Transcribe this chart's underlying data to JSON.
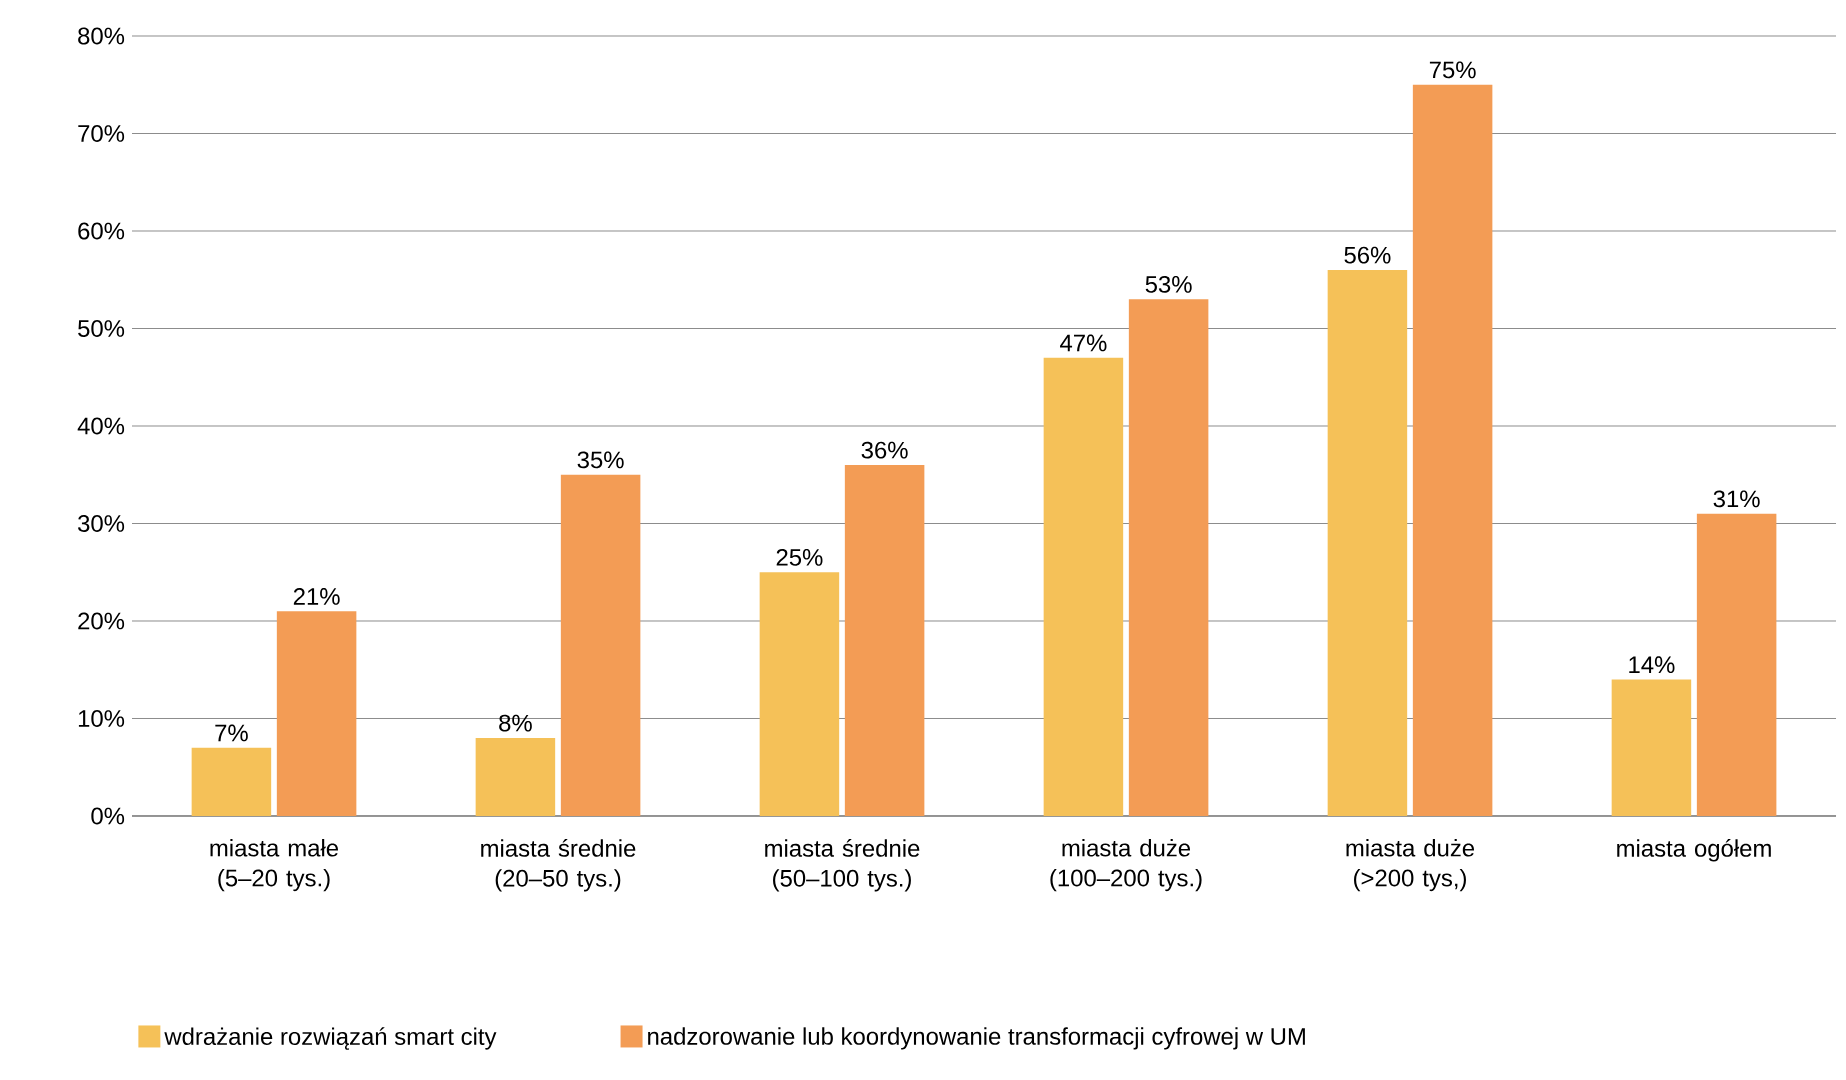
{
  "chart_data": {
    "type": "bar",
    "categories": [
      "miasta małe (5–20 tys.)",
      "miasta średnie (20–50 tys.)",
      "miasta średnie (50–100 tys.)",
      "miasta duże (100–200 tys.)",
      "miasta duże (>200 tys,)",
      "miasta ogółem"
    ],
    "series": [
      {
        "name": "wdrażanie rozwiązań smart city",
        "color": "#f5c158",
        "values": [
          7,
          8,
          25,
          47,
          56,
          14
        ],
        "value_labels": [
          "7%",
          "8%",
          "25%",
          "47%",
          "56%",
          "14%"
        ]
      },
      {
        "name": "nadzorowanie lub koordynowanie transformacji cyfrowej w UM",
        "color": "#f39c55",
        "values": [
          21,
          35,
          36,
          53,
          75,
          31
        ],
        "value_labels": [
          "21%",
          "35%",
          "36%",
          "53%",
          "75%",
          "31%"
        ]
      }
    ],
    "ylim": [
      0,
      80
    ],
    "yticks": [
      {
        "value": 0,
        "label": "0%"
      },
      {
        "value": 10,
        "label": "10%"
      },
      {
        "value": 20,
        "label": "20%"
      },
      {
        "value": 30,
        "label": "30%"
      },
      {
        "value": 40,
        "label": "40%"
      },
      {
        "value": 50,
        "label": "50%"
      },
      {
        "value": 60,
        "label": "60%"
      },
      {
        "value": 70,
        "label": "70%"
      },
      {
        "value": 80,
        "label": "80%"
      }
    ],
    "grid": "y",
    "legend": "bottom"
  }
}
